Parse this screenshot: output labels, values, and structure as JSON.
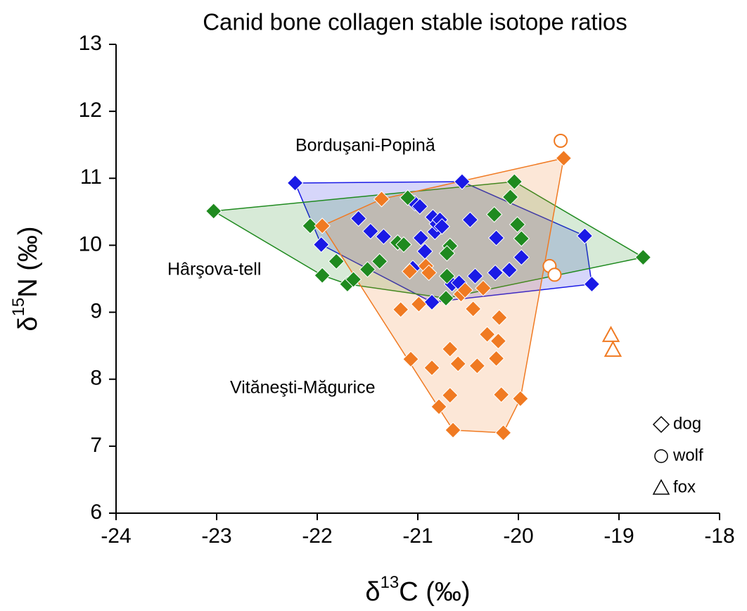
{
  "chart_data": {
    "type": "scatter",
    "title": "Canid bone collagen stable isotope ratios",
    "xlabel": {
      "symbol": "δ",
      "sup": "13",
      "rest": "C (‰)"
    },
    "ylabel": {
      "symbol": "δ",
      "sup": "15",
      "rest": "N (‰)"
    },
    "xlim": [
      -24,
      -18
    ],
    "xticks": [
      -24,
      -23,
      -22,
      -21,
      -20,
      -19,
      -18
    ],
    "ylim": [
      6,
      13
    ],
    "yticks": [
      6,
      7,
      8,
      9,
      10,
      11,
      12,
      13
    ],
    "grid": false,
    "markers": [
      {
        "shape": "diamond",
        "label": "dog"
      },
      {
        "shape": "circle",
        "label": "wolf"
      },
      {
        "shape": "triangle",
        "label": "fox"
      }
    ],
    "series": [
      {
        "name": "Borduşani-Popină",
        "color": "#1a1ae6",
        "shape": "diamond",
        "filled": true,
        "hull": true,
        "x": [
          -22.22,
          -21.96,
          -21.59,
          -21.47,
          -21.34,
          -21.03,
          -21.05,
          -20.98,
          -20.97,
          -20.93,
          -20.85,
          -20.83,
          -20.81,
          -20.78,
          -20.76,
          -20.66,
          -20.86,
          -20.56,
          -20.48,
          -20.59,
          -20.43,
          -20.23,
          -20.22,
          -20.09,
          -19.97,
          -19.34,
          -19.27
        ],
        "values": [
          10.93,
          10.01,
          10.4,
          10.21,
          10.13,
          10.63,
          9.66,
          10.58,
          10.11,
          9.91,
          10.42,
          10.2,
          10.32,
          10.38,
          10.28,
          9.42,
          9.15,
          10.95,
          10.38,
          9.44,
          9.54,
          9.59,
          10.11,
          9.63,
          9.82,
          10.14,
          9.42
        ]
      },
      {
        "name": "Hârşova-tell",
        "color": "#1f8a1f",
        "shape": "diamond",
        "filled": true,
        "hull": true,
        "x": [
          -23.03,
          -22.07,
          -21.81,
          -21.95,
          -21.7,
          -21.64,
          -21.5,
          -21.38,
          -21.2,
          -21.14,
          -21.1,
          -20.72,
          -20.71,
          -20.68,
          -20.71,
          -20.24,
          -20.01,
          -19.97,
          -20.08,
          -20.04,
          -18.76
        ],
        "values": [
          10.51,
          10.29,
          9.76,
          9.55,
          9.42,
          9.49,
          9.64,
          9.76,
          10.04,
          10.01,
          10.71,
          9.21,
          9.54,
          9.99,
          9.88,
          10.46,
          10.31,
          10.1,
          10.72,
          10.95,
          9.82
        ]
      },
      {
        "name": "Vităneşti-Măgurice",
        "color": "#f07a22",
        "shape": "diamond",
        "filled": true,
        "hull": true,
        "x": [
          -21.95,
          -21.36,
          -21.08,
          -21.17,
          -21.07,
          -20.99,
          -20.92,
          -20.89,
          -20.86,
          -20.79,
          -20.68,
          -20.68,
          -20.65,
          -20.6,
          -20.57,
          -20.53,
          -20.45,
          -20.41,
          -20.35,
          -20.31,
          -20.22,
          -20.2,
          -20.19,
          -20.17,
          -20.15,
          -19.98,
          -19.55
        ],
        "values": [
          10.29,
          10.69,
          9.61,
          9.04,
          8.3,
          9.12,
          9.69,
          9.59,
          8.17,
          7.59,
          7.76,
          8.45,
          7.24,
          8.23,
          9.27,
          9.33,
          9.05,
          8.2,
          9.36,
          8.67,
          8.31,
          8.57,
          8.92,
          7.77,
          7.2,
          7.71,
          11.3
        ]
      },
      {
        "color": "#f07a22",
        "shape": "circle",
        "filled": false,
        "hull": false,
        "x": [
          -19.58,
          -19.69,
          -19.64
        ],
        "values": [
          11.56,
          9.69,
          9.56
        ]
      },
      {
        "color": "#f07a22",
        "shape": "triangle",
        "filled": false,
        "hull": false,
        "x": [
          -19.08,
          -19.06
        ],
        "values": [
          8.66,
          8.44
        ]
      }
    ]
  }
}
